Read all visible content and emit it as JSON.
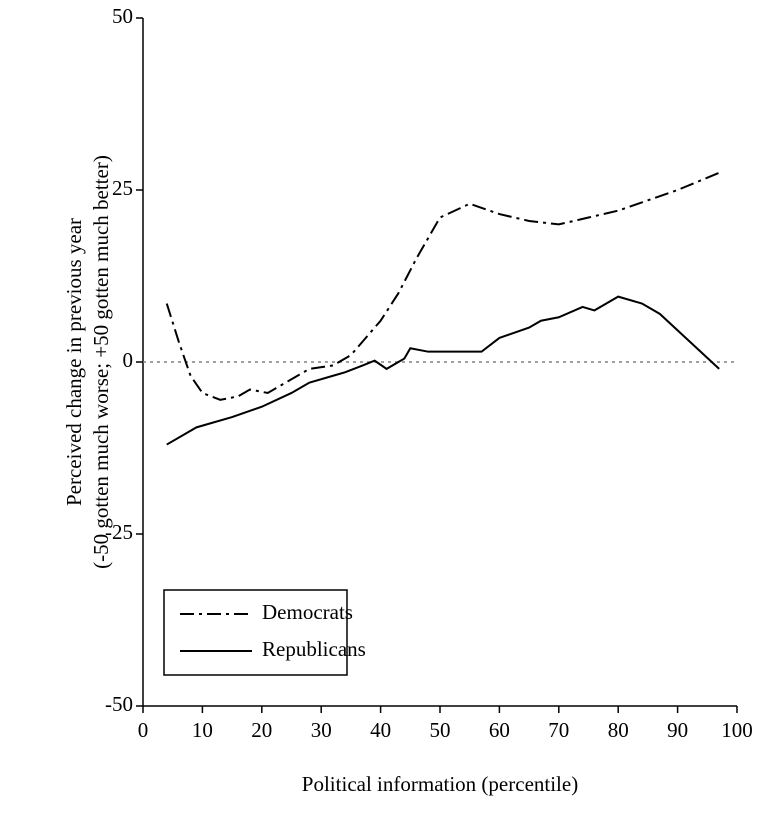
{
  "chart_data": {
    "type": "line",
    "x_label": "Political information (percentile)",
    "y_label": [
      "Perceived change in previous year",
      "(-50 gotten much worse; +50 gotten much better)"
    ],
    "series": [
      {
        "name": "Democrats",
        "color": "#000000",
        "style": "dashdot",
        "x": [
          4,
          6,
          8,
          10,
          13,
          16,
          18,
          21,
          24,
          28,
          32,
          35,
          38,
          40,
          43,
          46,
          50,
          55,
          60,
          65,
          70,
          75,
          80,
          85,
          90,
          97
        ],
        "values": [
          8.5,
          3,
          -2,
          -4.5,
          -5.5,
          -5,
          -4,
          -4.5,
          -3,
          -1,
          -0.5,
          1,
          4,
          6,
          10,
          15,
          21,
          23,
          21.5,
          20.5,
          20,
          21,
          22,
          23.5,
          25,
          27.5
        ]
      },
      {
        "name": "Republicans",
        "color": "#000000",
        "style": "solid",
        "x": [
          4,
          9,
          15,
          20,
          25,
          28,
          32,
          34,
          37,
          39,
          41,
          43,
          44,
          45,
          48,
          52,
          57,
          60,
          65,
          67,
          70,
          74,
          76,
          80,
          84,
          87,
          97
        ],
        "values": [
          -12,
          -9.5,
          -8,
          -6.5,
          -4.5,
          -3,
          -2,
          -1.5,
          -0.5,
          0.2,
          -1,
          0,
          0.5,
          2,
          1.5,
          1.5,
          1.5,
          3.5,
          5,
          6,
          6.5,
          8,
          7.5,
          9.5,
          8.5,
          7,
          -1
        ]
      }
    ],
    "xlim": [
      0,
      100
    ],
    "xticks": [
      0,
      10,
      20,
      30,
      40,
      50,
      60,
      70,
      80,
      90,
      100
    ],
    "ylim": [
      -50,
      50
    ],
    "yticks": [
      -50,
      -25,
      0,
      25,
      50
    ],
    "hline": 0,
    "legend": "lower-left"
  }
}
